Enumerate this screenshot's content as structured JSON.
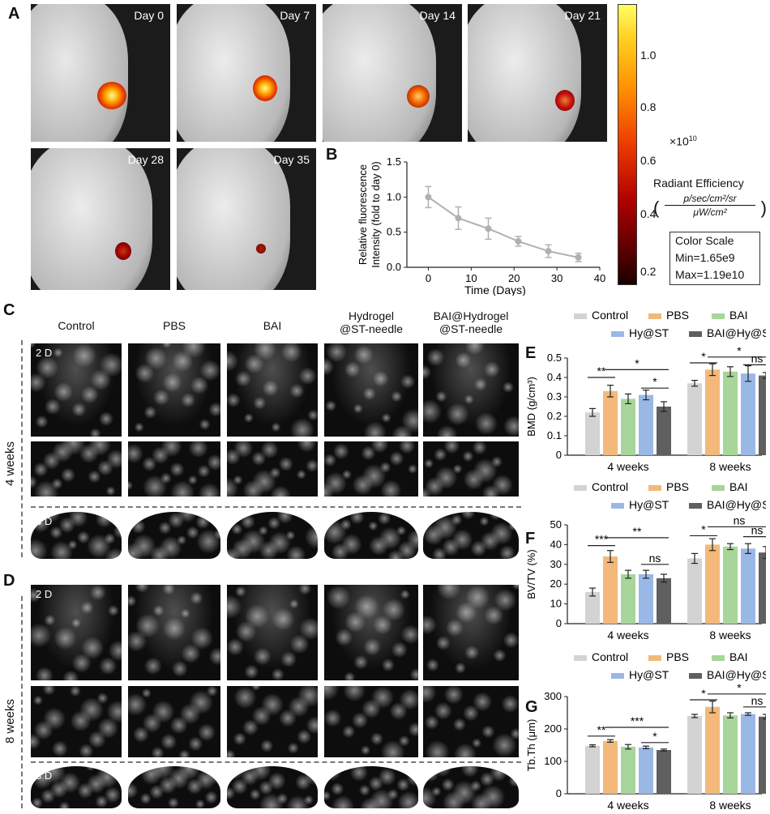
{
  "panel_labels": {
    "A": "A",
    "B": "B",
    "C": "C",
    "D": "D",
    "E": "E",
    "F": "F",
    "G": "G"
  },
  "imaging": {
    "days": [
      "Day 0",
      "Day 7",
      "Day 14",
      "Day 21",
      "Day 28",
      "Day 35"
    ],
    "colorbar": {
      "ticks": [
        "1.0",
        "0.8",
        "0.6",
        "0.4",
        "0.2"
      ],
      "exponent": "×10",
      "exponent_power": "10",
      "title": "Radiant Efficiency",
      "unit_numerator": "p/sec/cm²/sr",
      "unit_denominator": "μW/cm²",
      "scale_title": "Color Scale",
      "min": "Min=1.65e9",
      "max": "Max=1.19e10"
    }
  },
  "ct": {
    "groups": [
      "Control",
      "PBS",
      "BAI",
      "Hydrogel\n@ST-needle",
      "BAI@Hydrogel\n@ST-needle"
    ],
    "group_line1": [
      "Control",
      "PBS",
      "BAI",
      "Hydrogel",
      "BAI@Hydrogel"
    ],
    "group_line2": [
      "",
      "",
      "",
      "@ST-needle",
      "@ST-needle"
    ],
    "rows": {
      "week4": "4 weeks",
      "week8": "8 weeks"
    },
    "tags": {
      "two_d": "2 D",
      "three_d": "3 D"
    }
  },
  "colors": {
    "Control": "#d3d3d3",
    "PBS": "#f2b97a",
    "BAI": "#a8d59a",
    "Hy@ST": "#9ab8e6",
    "BAI@Hy@ST": "#5f5f5f",
    "line": "#b0b0b0"
  },
  "chart_data": [
    {
      "id": "B",
      "type": "line",
      "xlabel": "Time (Days)",
      "ylabel": "Relative fluorescence Intensity (fold to day 0)",
      "ylabel_line1": "Relative fluorescence",
      "ylabel_line2": "Intensity (fold to day 0)",
      "xlim": [
        -5,
        40
      ],
      "ylim": [
        0,
        1.5
      ],
      "xticks": [
        0,
        10,
        20,
        30,
        40
      ],
      "yticks": [
        0.0,
        0.5,
        1.0,
        1.5
      ],
      "x": [
        0,
        7,
        14,
        21,
        28,
        35
      ],
      "values": [
        1.0,
        0.7,
        0.55,
        0.37,
        0.23,
        0.14
      ],
      "errors": [
        0.15,
        0.16,
        0.15,
        0.07,
        0.09,
        0.06
      ]
    },
    {
      "id": "E",
      "type": "bar",
      "ylabel": "BMD (g/cm³)",
      "ylim": [
        0,
        0.5
      ],
      "yticks": [
        0.0,
        0.1,
        0.2,
        0.3,
        0.4,
        0.5
      ],
      "categories": [
        "4 weeks",
        "8 weeks"
      ],
      "series": [
        {
          "name": "Control",
          "values": [
            0.22,
            0.37
          ],
          "errors": [
            0.02,
            0.015
          ]
        },
        {
          "name": "PBS",
          "values": [
            0.33,
            0.44
          ],
          "errors": [
            0.03,
            0.03
          ]
        },
        {
          "name": "BAI",
          "values": [
            0.29,
            0.43
          ],
          "errors": [
            0.025,
            0.025
          ]
        },
        {
          "name": "Hy@ST",
          "values": [
            0.31,
            0.42
          ],
          "errors": [
            0.025,
            0.04
          ]
        },
        {
          "name": "BAI@Hy@ST",
          "values": [
            0.25,
            0.41
          ],
          "errors": [
            0.025,
            0.015
          ]
        }
      ],
      "annotations": [
        {
          "text": "**",
          "group": 0,
          "from": 0,
          "to": 1,
          "y": 0.4
        },
        {
          "text": "*",
          "group": 0,
          "from": 1,
          "to": 4,
          "y": 0.44
        },
        {
          "text": "*",
          "group": 0,
          "from": 3,
          "to": 4,
          "y": 0.345
        },
        {
          "text": "*",
          "group": 1,
          "from": 0,
          "to": 1,
          "y": 0.475
        },
        {
          "text": "*",
          "group": 1,
          "from": 1,
          "to": 4,
          "y": 0.505
        },
        {
          "text": "ns",
          "group": 1,
          "from": 3,
          "to": 4,
          "y": 0.465
        }
      ]
    },
    {
      "id": "F",
      "type": "bar",
      "ylabel": "BV/TV (%)",
      "ylim": [
        0,
        50
      ],
      "yticks": [
        0,
        10,
        20,
        30,
        40,
        50
      ],
      "categories": [
        "4 weeks",
        "8 weeks"
      ],
      "series": [
        {
          "name": "Control",
          "values": [
            16,
            33
          ],
          "errors": [
            2,
            2.5
          ]
        },
        {
          "name": "PBS",
          "values": [
            34,
            40
          ],
          "errors": [
            3,
            3
          ]
        },
        {
          "name": "BAI",
          "values": [
            25,
            39
          ],
          "errors": [
            2,
            1.5
          ]
        },
        {
          "name": "Hy@ST",
          "values": [
            25,
            38
          ],
          "errors": [
            2,
            2.5
          ]
        },
        {
          "name": "BAI@Hy@ST",
          "values": [
            23,
            36
          ],
          "errors": [
            2,
            3
          ]
        }
      ],
      "annotations": [
        {
          "text": "***",
          "group": 0,
          "from": 0,
          "to": 1,
          "y": 39.5
        },
        {
          "text": "**",
          "group": 0,
          "from": 1,
          "to": 4,
          "y": 43.5
        },
        {
          "text": "ns",
          "group": 0,
          "from": 3,
          "to": 4,
          "y": 30
        },
        {
          "text": "*",
          "group": 1,
          "from": 0,
          "to": 1,
          "y": 44.5
        },
        {
          "text": "ns",
          "group": 1,
          "from": 1,
          "to": 4,
          "y": 49
        },
        {
          "text": "ns",
          "group": 1,
          "from": 3,
          "to": 4,
          "y": 44
        }
      ]
    },
    {
      "id": "G",
      "type": "bar",
      "ylabel": "Tb.Th (μm)",
      "ylim": [
        0,
        300
      ],
      "yticks": [
        0,
        100,
        200,
        300
      ],
      "categories": [
        "4 weeks",
        "8 weeks"
      ],
      "series": [
        {
          "name": "Control",
          "values": [
            148,
            240
          ],
          "errors": [
            3,
            5
          ]
        },
        {
          "name": "PBS",
          "values": [
            163,
            268
          ],
          "errors": [
            4,
            18
          ]
        },
        {
          "name": "BAI",
          "values": [
            145,
            242
          ],
          "errors": [
            7,
            8
          ]
        },
        {
          "name": "Hy@ST",
          "values": [
            143,
            246
          ],
          "errors": [
            4,
            4
          ]
        },
        {
          "name": "BAI@Hy@ST",
          "values": [
            135,
            238
          ],
          "errors": [
            3,
            7
          ]
        }
      ],
      "annotations": [
        {
          "text": "**",
          "group": 0,
          "from": 0,
          "to": 1,
          "y": 178
        },
        {
          "text": "***",
          "group": 0,
          "from": 1,
          "to": 4,
          "y": 205
        },
        {
          "text": "*",
          "group": 0,
          "from": 3,
          "to": 4,
          "y": 158
        },
        {
          "text": "*",
          "group": 1,
          "from": 0,
          "to": 1,
          "y": 290
        },
        {
          "text": "*",
          "group": 1,
          "from": 1,
          "to": 4,
          "y": 308
        },
        {
          "text": "ns",
          "group": 1,
          "from": 3,
          "to": 4,
          "y": 268
        }
      ]
    }
  ]
}
